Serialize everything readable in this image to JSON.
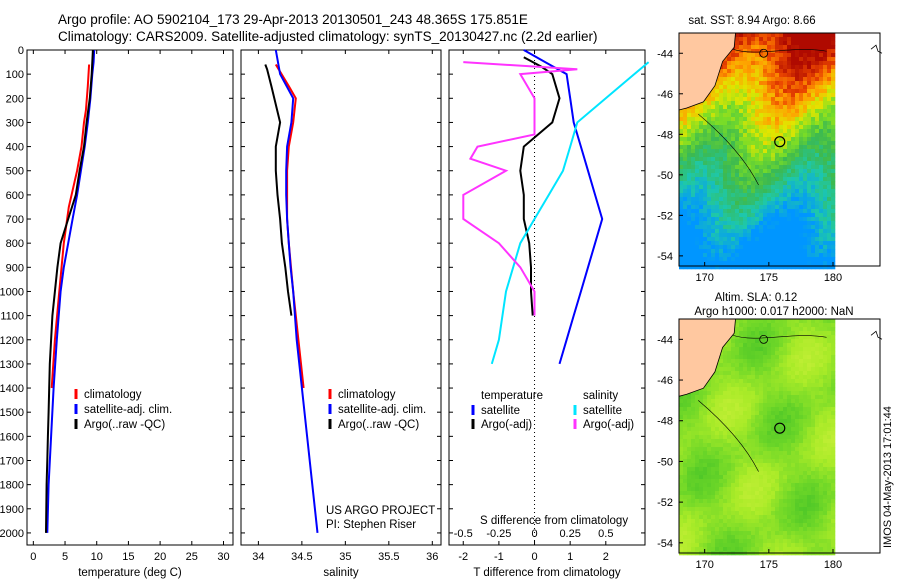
{
  "header": {
    "line1": "Argo profile: AO 5902104_173 29-Apr-2013 20130501_243 48.365S 175.851E",
    "line2": "Climatology: CARS2009. Satellite-adjusted climatology: synTS_20130427.nc (2.2d earlier)"
  },
  "colors": {
    "climatology": "#ff0000",
    "satellite": "#0000ff",
    "argo": "#000000",
    "salinity_satellite": "#00e5ff",
    "salinity_argo": "#ff33ff",
    "land": "#ffc8a0"
  },
  "chart_data": [
    {
      "type": "line",
      "id": "temperature",
      "xlabel": "temperature (deg C)",
      "ylabel": "",
      "xlim": [
        -1,
        31.5
      ],
      "ylim": [
        2050,
        0
      ],
      "xticks": [
        0,
        5,
        10,
        15,
        20,
        25,
        30
      ],
      "yticks": [
        0,
        100,
        200,
        300,
        400,
        500,
        600,
        700,
        800,
        900,
        1000,
        1100,
        1200,
        1300,
        1400,
        1500,
        1600,
        1700,
        1800,
        1900,
        2000
      ],
      "legend": [
        "climatology",
        "satellite-adj. clim.",
        "Argo(..raw -QC)"
      ],
      "series": [
        {
          "name": "climatology",
          "color": "#ff0000",
          "points": [
            [
              8.8,
              60
            ],
            [
              8.6,
              150
            ],
            [
              8.3,
              250
            ],
            [
              8,
              300
            ],
            [
              7.6,
              400
            ],
            [
              6.9,
              500
            ],
            [
              5.6,
              650
            ],
            [
              4.8,
              800
            ],
            [
              4.1,
              1000
            ],
            [
              3.4,
              1200
            ],
            [
              2.9,
              1400
            ]
          ]
        },
        {
          "name": "satellite-adj. clim.",
          "color": "#0000ff",
          "points": [
            [
              9.6,
              0
            ],
            [
              9.5,
              50
            ],
            [
              9.3,
              100
            ],
            [
              9,
              200
            ],
            [
              8.6,
              300
            ],
            [
              8.1,
              400
            ],
            [
              7.5,
              500
            ],
            [
              6.9,
              600
            ],
            [
              6.2,
              700
            ],
            [
              5.5,
              800
            ],
            [
              4.8,
              900
            ],
            [
              4.3,
              1000
            ],
            [
              3.7,
              1200
            ],
            [
              3.2,
              1400
            ],
            [
              2.8,
              1600
            ],
            [
              2.4,
              1800
            ],
            [
              2.2,
              2000
            ]
          ]
        },
        {
          "name": "Argo(..raw -QC)",
          "color": "#000000",
          "points": [
            [
              9.4,
              0
            ],
            [
              9.2,
              100
            ],
            [
              8.9,
              200
            ],
            [
              8.4,
              300
            ],
            [
              8,
              400
            ],
            [
              7.3,
              500
            ],
            [
              6.7,
              600
            ],
            [
              5.5,
              700
            ],
            [
              4.3,
              800
            ],
            [
              3.8,
              900
            ],
            [
              3.4,
              1000
            ],
            [
              3,
              1100
            ],
            [
              2.8,
              1200
            ],
            [
              2.6,
              1300
            ],
            [
              2.5,
              1400
            ],
            [
              2.4,
              1500
            ],
            [
              2.3,
              1600
            ],
            [
              2.2,
              1700
            ],
            [
              2.1,
              1800
            ],
            [
              2.05,
              1900
            ],
            [
              2,
              2000
            ]
          ]
        }
      ]
    },
    {
      "type": "line",
      "id": "salinity",
      "xlabel": "salinity",
      "ylabel": "",
      "xlim": [
        33.8,
        36.1
      ],
      "ylim": [
        2050,
        0
      ],
      "xticks": [
        34,
        34.5,
        35,
        35.5,
        36
      ],
      "legend": [
        "climatology",
        "satellite-adj. clim.",
        "Argo(..raw -QC)"
      ],
      "series": [
        {
          "name": "climatology",
          "color": "#ff0000",
          "points": [
            [
              34.2,
              60
            ],
            [
              34.35,
              150
            ],
            [
              34.43,
              200
            ],
            [
              34.4,
              300
            ],
            [
              34.35,
              400
            ],
            [
              34.33,
              500
            ],
            [
              34.33,
              600
            ],
            [
              34.33,
              700
            ],
            [
              34.35,
              800
            ],
            [
              34.4,
              1000
            ],
            [
              34.43,
              1100
            ],
            [
              34.46,
              1200
            ],
            [
              34.49,
              1300
            ],
            [
              34.52,
              1400
            ]
          ]
        },
        {
          "name": "satellite-adj. clim.",
          "color": "#0000ff",
          "points": [
            [
              34.2,
              0
            ],
            [
              34.25,
              100
            ],
            [
              34.4,
              200
            ],
            [
              34.38,
              300
            ],
            [
              34.33,
              400
            ],
            [
              34.32,
              500
            ],
            [
              34.32,
              600
            ],
            [
              34.33,
              700
            ],
            [
              34.35,
              800
            ],
            [
              34.37,
              900
            ],
            [
              34.4,
              1000
            ],
            [
              34.44,
              1200
            ],
            [
              34.5,
              1400
            ],
            [
              34.56,
              1600
            ],
            [
              34.62,
              1800
            ],
            [
              34.68,
              2000
            ]
          ]
        },
        {
          "name": "Argo(..raw -QC)",
          "color": "#000000",
          "points": [
            [
              34.08,
              60
            ],
            [
              34.1,
              80
            ],
            [
              34.15,
              150
            ],
            [
              34.25,
              300
            ],
            [
              34.2,
              400
            ],
            [
              34.2,
              500
            ],
            [
              34.22,
              600
            ],
            [
              34.25,
              700
            ],
            [
              34.27,
              800
            ],
            [
              34.31,
              900
            ],
            [
              34.34,
              1000
            ],
            [
              34.38,
              1100
            ]
          ]
        }
      ]
    },
    {
      "type": "line",
      "id": "difference",
      "xlabel": "T difference from climatology",
      "ylabel": "",
      "secondary_xlabel": "S difference from climatology",
      "xlim": [
        -2.4,
        3.1
      ],
      "secondary_xlim": [
        -0.6,
        0.775
      ],
      "ylim": [
        2050,
        0
      ],
      "xticks": [
        -2,
        -1,
        0,
        1,
        2
      ],
      "secondary_xticks": [
        -0.5,
        -0.25,
        0,
        0.25,
        0.5
      ],
      "legend": {
        "headers": [
          "temperature",
          "salinity"
        ],
        "entries": [
          "satellite",
          "Argo(-adj)",
          "satellite",
          "Argo(-adj)"
        ]
      },
      "series": [
        {
          "name": "satellite",
          "group": "temperature",
          "color": "#0000ff",
          "points": [
            [
              -0.3,
              0
            ],
            [
              0.3,
              50
            ],
            [
              0.9,
              100
            ],
            [
              1,
              200
            ],
            [
              1.1,
              300
            ],
            [
              1.3,
              400
            ],
            [
              1.5,
              500
            ],
            [
              1.7,
              600
            ],
            [
              1.9,
              700
            ],
            [
              1.7,
              800
            ],
            [
              1.5,
              900
            ],
            [
              1.3,
              1000
            ],
            [
              1.1,
              1100
            ],
            [
              0.9,
              1200
            ],
            [
              0.7,
              1300
            ]
          ]
        },
        {
          "name": "Argo(-adj)",
          "group": "temperature",
          "color": "#000000",
          "points": [
            [
              -0.3,
              30
            ],
            [
              0.2,
              70
            ],
            [
              0.5,
              100
            ],
            [
              0.7,
              200
            ],
            [
              0.5,
              300
            ],
            [
              -0.3,
              400
            ],
            [
              -0.4,
              500
            ],
            [
              -0.3,
              600
            ],
            [
              -0.3,
              700
            ],
            [
              -0.15,
              800
            ],
            [
              -0.1,
              900
            ],
            [
              -0.1,
              1000
            ],
            [
              -0.05,
              1100
            ]
          ]
        },
        {
          "name": "satellite",
          "group": "salinity",
          "color": "#00e5ff",
          "points": [
            [
              0.8,
              50
            ],
            [
              0.7,
              100
            ],
            [
              0.5,
              200
            ],
            [
              0.3,
              300
            ],
            [
              0.25,
              400
            ],
            [
              0.2,
              500
            ],
            [
              0.1,
              600
            ],
            [
              0,
              700
            ],
            [
              -0.1,
              800
            ],
            [
              -0.2,
              1000
            ],
            [
              -0.25,
              1200
            ],
            [
              -0.3,
              1300
            ]
          ]
        },
        {
          "name": "Argo(-adj)",
          "group": "salinity",
          "color": "#ff33ff",
          "points": [
            [
              -0.5,
              50
            ],
            [
              0.3,
              80
            ],
            [
              -0.1,
              100
            ],
            [
              0,
              200
            ],
            [
              0,
              350
            ],
            [
              -0.4,
              400
            ],
            [
              -0.45,
              450
            ],
            [
              -0.2,
              500
            ],
            [
              -0.5,
              600
            ],
            [
              -0.5,
              700
            ],
            [
              -0.25,
              800
            ],
            [
              -0.1,
              900
            ],
            [
              0,
              1000
            ],
            [
              0,
              1100
            ]
          ]
        }
      ]
    },
    {
      "type": "heatmap",
      "id": "sst-map",
      "title": "sat. SST: 8.94 Argo: 8.66",
      "xlim": [
        168,
        180
      ],
      "ylim": [
        -54.5,
        -43
      ],
      "xticks": [
        170,
        175,
        180
      ],
      "yticks": [
        -44,
        -46,
        -48,
        -50,
        -52,
        -54
      ],
      "argo_position": {
        "lon": 175.851,
        "lat": -48.365
      }
    },
    {
      "type": "heatmap",
      "id": "sla-map",
      "title": "Altim. SLA: 0.12",
      "subtitle": "Argo h1000: 0.017 h2000: NaN",
      "xlim": [
        168,
        180
      ],
      "ylim": [
        -54.5,
        -43
      ],
      "xticks": [
        170,
        175,
        180
      ],
      "yticks": [
        -44,
        -46,
        -48,
        -50,
        -52,
        -54
      ],
      "argo_position": {
        "lon": 175.851,
        "lat": -48.365
      }
    }
  ],
  "panel_notes": {
    "project": "US ARGO PROJECT",
    "pi": "PI: Stephen Riser"
  },
  "footer": {
    "side_text": "IMOS 04-May-2013 17:01:44"
  }
}
